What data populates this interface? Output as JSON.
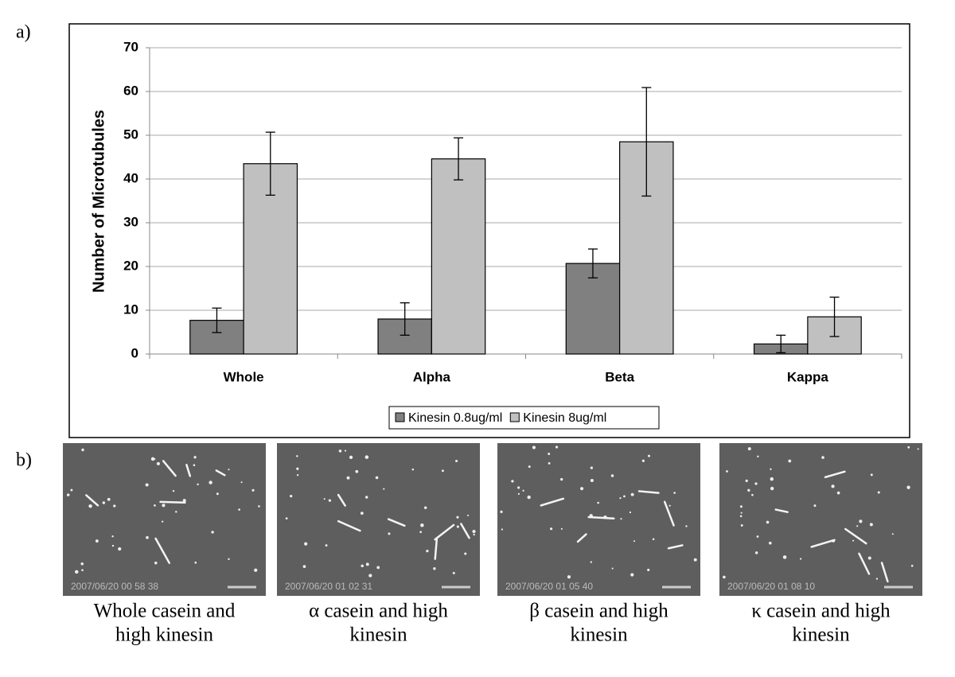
{
  "panel_a": {
    "label": "a)"
  },
  "chart_data": {
    "type": "bar",
    "ylabel": "Number of Microtubules",
    "categories": [
      "Whole",
      "Alpha",
      "Beta",
      "Kappa"
    ],
    "series": [
      {
        "name": "Kinesin 0.8ug/ml",
        "color": "#808080",
        "values": [
          7.7,
          8.0,
          20.7,
          2.3
        ],
        "errors": [
          2.8,
          3.7,
          3.3,
          2.0
        ]
      },
      {
        "name": "Kinesin 8ug/ml",
        "color": "#c0c0c0",
        "values": [
          43.5,
          44.6,
          48.5,
          8.5
        ],
        "errors": [
          7.2,
          4.8,
          12.4,
          4.5
        ]
      }
    ],
    "ylim": [
      0,
      70
    ],
    "yticks": [
      0,
      10,
      20,
      30,
      40,
      50,
      60,
      70
    ],
    "grid": true,
    "legend": "bottom"
  },
  "panel_b": {
    "label": "b)",
    "images": [
      {
        "timestamp": "2007/06/20 00 58 38",
        "caption": [
          "Whole casein and",
          "high kinesin"
        ]
      },
      {
        "timestamp": "2007/06/20 01 02 31",
        "caption": [
          "α casein and high",
          "kinesin"
        ]
      },
      {
        "timestamp": "2007/06/20 01 05 40",
        "caption": [
          "β casein and high",
          "kinesin"
        ]
      },
      {
        "timestamp": "2007/06/20 01 08 10",
        "caption": [
          "κ  casein and high",
          "kinesin"
        ]
      }
    ]
  }
}
